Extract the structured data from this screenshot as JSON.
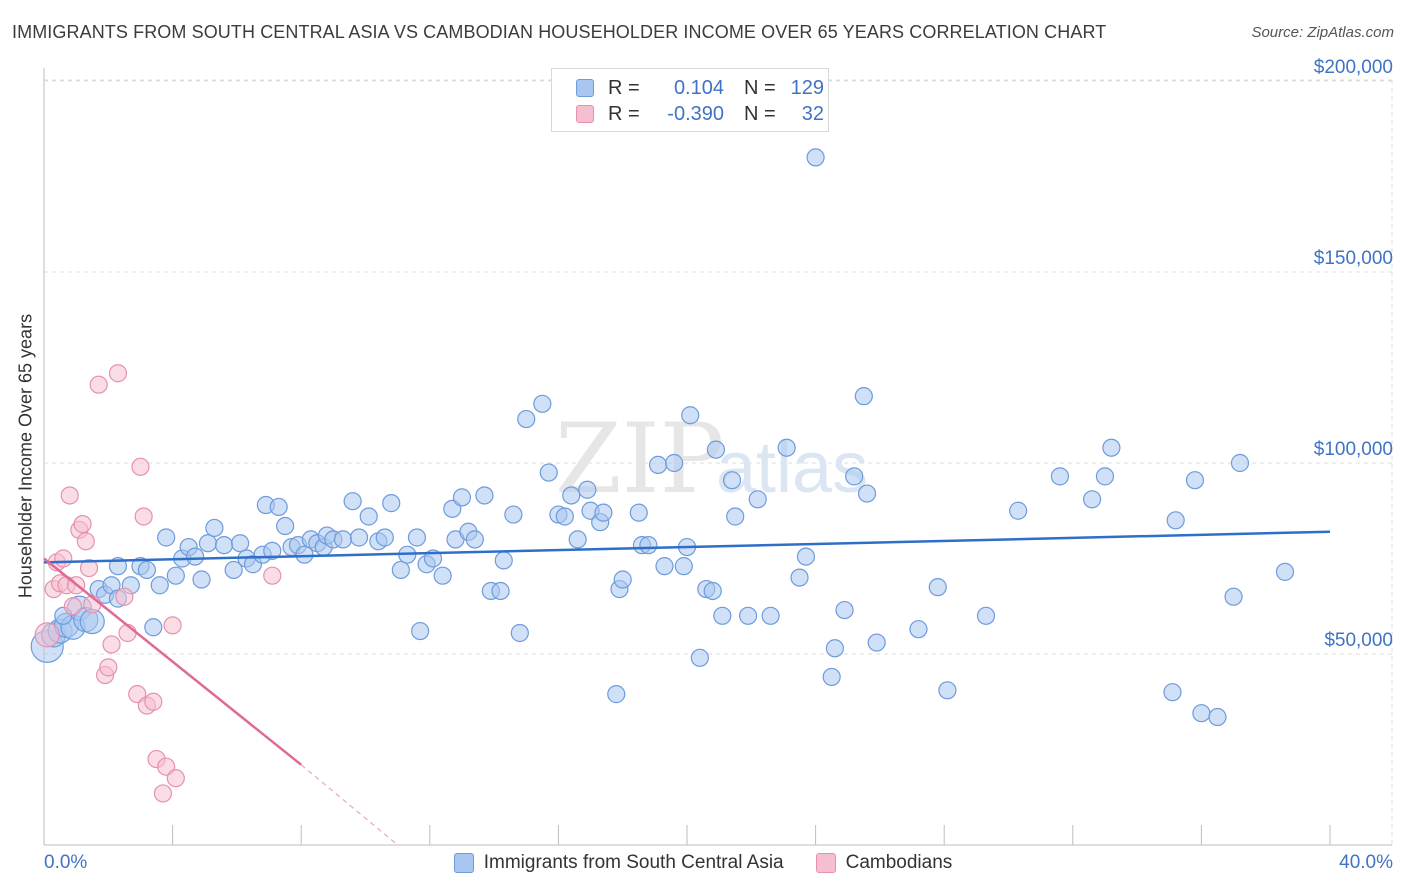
{
  "title": "IMMIGRANTS FROM SOUTH CENTRAL ASIA VS CAMBODIAN HOUSEHOLDER INCOME OVER 65 YEARS CORRELATION CHART",
  "source": "Source: ZipAtlas.com",
  "legend": {
    "rows": [
      {
        "r_label": "R =",
        "r_value": "0.104",
        "n_label": "N =",
        "n_value": "129"
      },
      {
        "r_label": "R =",
        "r_value": "-0.390",
        "n_label": "N =",
        "n_value": "32"
      }
    ]
  },
  "colors": {
    "blue_fill": "#a9c6f0",
    "blue_stroke": "#6d9bdc",
    "blue_line": "#2f6fc8",
    "pink_fill": "#f5bfd0",
    "pink_stroke": "#e691ad",
    "pink_line": "#e06a96",
    "tick_text": "#3f73c6",
    "grid": "#dcdcdc"
  },
  "chart_data": {
    "type": "scatter",
    "xlabel": "",
    "ylabel": "Householder Income Over 65 years",
    "xlim": [
      0,
      40
    ],
    "ylim": [
      0,
      210000
    ],
    "x_tick_labels": {
      "left": "0.0%",
      "right": "40.0%"
    },
    "y_ticks": [
      {
        "value": 50000,
        "label": "$50,000"
      },
      {
        "value": 100000,
        "label": "$100,000"
      },
      {
        "value": 150000,
        "label": "$150,000"
      },
      {
        "value": 200000,
        "label": "$200,000"
      }
    ],
    "grid": true,
    "legend_position": "top-center",
    "series": [
      {
        "name": "Immigrants from South Central Asia",
        "trend": {
          "x": [
            0,
            40
          ],
          "y": [
            74000,
            82000
          ]
        },
        "points": [
          [
            0.1,
            52000
          ],
          [
            0.3,
            55000
          ],
          [
            0.5,
            56000
          ],
          [
            0.7,
            57500
          ],
          [
            0.9,
            57000
          ],
          [
            1.1,
            62000
          ],
          [
            1.3,
            59000
          ],
          [
            1.5,
            58500
          ],
          [
            1.7,
            67000
          ],
          [
            1.9,
            65500
          ],
          [
            2.1,
            68000
          ],
          [
            2.3,
            64500
          ],
          [
            2.3,
            73000
          ],
          [
            2.7,
            68000
          ],
          [
            3.0,
            73000
          ],
          [
            3.2,
            72000
          ],
          [
            3.4,
            57000
          ],
          [
            3.6,
            68000
          ],
          [
            3.8,
            80500
          ],
          [
            4.1,
            70500
          ],
          [
            4.3,
            75000
          ],
          [
            4.5,
            78000
          ],
          [
            4.7,
            75500
          ],
          [
            4.9,
            69500
          ],
          [
            5.1,
            79000
          ],
          [
            5.3,
            83000
          ],
          [
            5.6,
            78500
          ],
          [
            5.9,
            72000
          ],
          [
            6.1,
            79000
          ],
          [
            6.3,
            75000
          ],
          [
            6.5,
            73500
          ],
          [
            6.8,
            76000
          ],
          [
            6.9,
            89000
          ],
          [
            7.1,
            77000
          ],
          [
            7.3,
            88500
          ],
          [
            7.5,
            83500
          ],
          [
            7.7,
            78000
          ],
          [
            7.9,
            78500
          ],
          [
            8.1,
            76000
          ],
          [
            8.3,
            80000
          ],
          [
            8.5,
            79000
          ],
          [
            8.7,
            78000
          ],
          [
            8.8,
            81000
          ],
          [
            9.0,
            80000
          ],
          [
            9.3,
            80000
          ],
          [
            9.6,
            90000
          ],
          [
            9.8,
            80500
          ],
          [
            10.1,
            86000
          ],
          [
            10.4,
            79500
          ],
          [
            10.6,
            80500
          ],
          [
            10.8,
            89500
          ],
          [
            11.1,
            72000
          ],
          [
            11.3,
            76000
          ],
          [
            11.6,
            80500
          ],
          [
            11.7,
            56000
          ],
          [
            11.9,
            73500
          ],
          [
            12.1,
            75000
          ],
          [
            12.4,
            70500
          ],
          [
            12.7,
            88000
          ],
          [
            12.8,
            80000
          ],
          [
            13.0,
            91000
          ],
          [
            13.2,
            82000
          ],
          [
            13.4,
            80000
          ],
          [
            13.7,
            91500
          ],
          [
            13.9,
            66500
          ],
          [
            14.2,
            66500
          ],
          [
            14.3,
            74500
          ],
          [
            14.6,
            86500
          ],
          [
            14.8,
            55500
          ],
          [
            15.0,
            111500
          ],
          [
            15.5,
            115500
          ],
          [
            15.7,
            97500
          ],
          [
            16.0,
            86500
          ],
          [
            16.2,
            86000
          ],
          [
            16.4,
            91500
          ],
          [
            16.6,
            80000
          ],
          [
            16.9,
            93000
          ],
          [
            17.0,
            87500
          ],
          [
            17.3,
            84500
          ],
          [
            17.4,
            87000
          ],
          [
            17.8,
            39500
          ],
          [
            17.9,
            67000
          ],
          [
            18.0,
            69500
          ],
          [
            18.5,
            87000
          ],
          [
            18.6,
            78500
          ],
          [
            18.8,
            78500
          ],
          [
            19.1,
            99500
          ],
          [
            19.3,
            73000
          ],
          [
            19.6,
            100000
          ],
          [
            19.9,
            73000
          ],
          [
            20.0,
            78000
          ],
          [
            20.1,
            112500
          ],
          [
            20.4,
            49000
          ],
          [
            20.6,
            67000
          ],
          [
            20.8,
            66500
          ],
          [
            20.9,
            103500
          ],
          [
            21.1,
            60000
          ],
          [
            21.4,
            95500
          ],
          [
            21.5,
            86000
          ],
          [
            21.9,
            60000
          ],
          [
            22.2,
            90500
          ],
          [
            22.6,
            60000
          ],
          [
            23.1,
            104000
          ],
          [
            23.5,
            70000
          ],
          [
            23.7,
            75500
          ],
          [
            24.0,
            180000
          ],
          [
            24.5,
            44000
          ],
          [
            24.6,
            51500
          ],
          [
            24.9,
            61500
          ],
          [
            25.5,
            117500
          ],
          [
            25.6,
            92000
          ],
          [
            25.9,
            53000
          ],
          [
            25.2,
            96500
          ],
          [
            27.2,
            56500
          ],
          [
            27.8,
            67500
          ],
          [
            28.1,
            40500
          ],
          [
            29.3,
            60000
          ],
          [
            30.3,
            87500
          ],
          [
            31.6,
            96500
          ],
          [
            32.6,
            90500
          ],
          [
            33.0,
            96500
          ],
          [
            33.2,
            104000
          ],
          [
            35.1,
            40000
          ],
          [
            35.2,
            85000
          ],
          [
            35.8,
            95500
          ],
          [
            36.0,
            34500
          ],
          [
            36.5,
            33500
          ],
          [
            37.0,
            65000
          ],
          [
            37.2,
            100000
          ],
          [
            38.6,
            71500
          ],
          [
            0.6,
            60000
          ]
        ]
      },
      {
        "name": "Cambodians",
        "trend": {
          "x": [
            0,
            8
          ],
          "y": [
            75000,
            21000
          ]
        },
        "trend_extension": {
          "x": [
            8,
            11
          ],
          "y": [
            21000,
            0
          ]
        },
        "points": [
          [
            0.1,
            55000
          ],
          [
            0.3,
            67000
          ],
          [
            0.4,
            74000
          ],
          [
            0.5,
            68500
          ],
          [
            0.6,
            75000
          ],
          [
            0.7,
            68000
          ],
          [
            0.8,
            91500
          ],
          [
            0.9,
            62500
          ],
          [
            1.0,
            68000
          ],
          [
            1.1,
            82500
          ],
          [
            1.2,
            84000
          ],
          [
            1.3,
            79500
          ],
          [
            1.4,
            72500
          ],
          [
            1.5,
            63000
          ],
          [
            1.7,
            120500
          ],
          [
            1.9,
            44500
          ],
          [
            2.0,
            46500
          ],
          [
            2.1,
            52500
          ],
          [
            2.3,
            123500
          ],
          [
            2.5,
            65000
          ],
          [
            2.6,
            55500
          ],
          [
            2.9,
            39500
          ],
          [
            3.0,
            99000
          ],
          [
            3.1,
            86000
          ],
          [
            3.2,
            36500
          ],
          [
            3.4,
            37500
          ],
          [
            3.5,
            22500
          ],
          [
            3.7,
            13500
          ],
          [
            3.8,
            20500
          ],
          [
            4.0,
            57500
          ],
          [
            4.1,
            17500
          ],
          [
            7.1,
            70500
          ]
        ]
      }
    ]
  },
  "bottom_legend": [
    "Immigrants from South Central Asia",
    "Cambodians"
  ]
}
